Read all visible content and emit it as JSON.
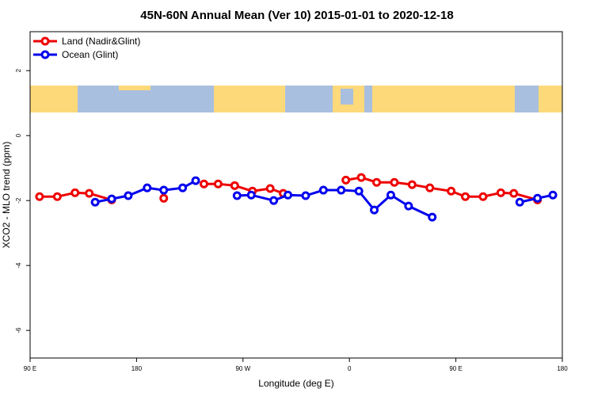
{
  "chart_data": {
    "type": "line",
    "title": "45N-60N Annual Mean (Ver 10)   2015-01-01 to 2020-12-18",
    "x_label": "Longitude (deg E)",
    "y_label": "XCO2 - MLO trend (ppm)",
    "xlim": [
      90,
      540
    ],
    "ylim": [
      -6.85,
      3.2
    ],
    "xticks": [
      {
        "value": 90,
        "label": "90 E"
      },
      180,
      {
        "value": 270,
        "label": "90 W"
      },
      {
        "value": 360,
        "label": "0"
      },
      {
        "value": 450,
        "label": "90 E"
      },
      {
        "value": 540,
        "label": "180"
      }
    ],
    "yticks": [
      -6,
      -4,
      -2,
      0,
      2
    ],
    "legend": "top-left",
    "series": [
      {
        "name": "Land (Nadir&Glint)",
        "color": "#ee0000",
        "x": [
          98,
          113,
          128,
          140,
          159,
          null,
          203,
          null,
          237,
          249,
          263,
          278,
          293,
          304,
          null,
          357,
          370,
          383,
          398,
          413,
          428,
          446,
          458,
          473,
          488,
          499,
          519
        ],
        "values": [
          -1.88,
          -1.88,
          -1.76,
          -1.78,
          -1.98,
          null,
          -1.93,
          null,
          -1.49,
          -1.49,
          -1.54,
          -1.71,
          -1.63,
          -1.78,
          null,
          -1.37,
          -1.29,
          -1.44,
          -1.44,
          -1.51,
          -1.61,
          -1.71,
          -1.88,
          -1.88,
          -1.76,
          -1.78,
          -1.98
        ]
      },
      {
        "name": "Ocean (Glint)",
        "color": "#0000ee",
        "x": [
          145,
          159,
          173,
          189,
          203,
          219,
          230,
          null,
          265,
          277,
          296,
          308,
          323,
          338,
          353,
          368,
          381,
          395,
          410,
          430,
          null,
          504,
          519,
          532
        ],
        "values": [
          -2.05,
          -1.95,
          -1.85,
          -1.61,
          -1.68,
          -1.61,
          -1.39,
          null,
          -1.85,
          -1.83,
          -2.0,
          -1.83,
          -1.85,
          -1.68,
          -1.68,
          -1.71,
          -2.29,
          -1.83,
          -2.17,
          -2.51,
          null,
          -2.05,
          -1.93,
          -1.83
        ]
      }
    ]
  }
}
